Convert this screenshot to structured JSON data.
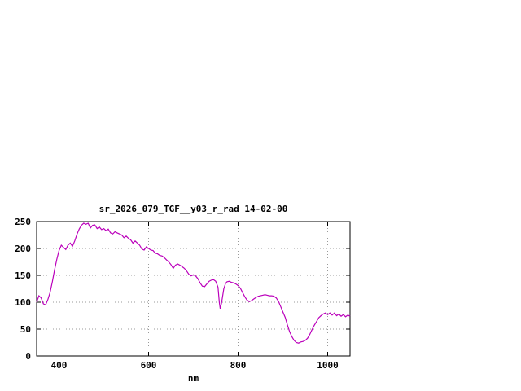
{
  "chart_data": {
    "type": "line",
    "title": "sr_2026_079_TGF__y03_r_rad 14-02-00",
    "xlabel": "nm",
    "ylabel": "",
    "xlim": [
      350,
      1050
    ],
    "ylim": [
      0,
      250
    ],
    "xticks": [
      400,
      600,
      800,
      1000
    ],
    "yticks": [
      0,
      50,
      100,
      150,
      200,
      250
    ],
    "grid": true,
    "legend_position": "none",
    "line_color": "#bb00bb",
    "x": [
      350,
      355,
      360,
      365,
      370,
      375,
      380,
      385,
      390,
      395,
      400,
      405,
      410,
      415,
      420,
      425,
      430,
      435,
      440,
      445,
      450,
      455,
      460,
      465,
      470,
      475,
      480,
      485,
      490,
      495,
      500,
      505,
      510,
      515,
      520,
      525,
      530,
      535,
      540,
      545,
      550,
      555,
      560,
      565,
      570,
      575,
      580,
      585,
      590,
      595,
      600,
      605,
      610,
      615,
      620,
      625,
      630,
      635,
      640,
      645,
      650,
      655,
      660,
      665,
      670,
      675,
      680,
      685,
      690,
      695,
      700,
      705,
      710,
      715,
      720,
      725,
      730,
      735,
      740,
      745,
      750,
      755,
      758,
      760,
      763,
      768,
      772,
      775,
      780,
      785,
      790,
      795,
      800,
      805,
      810,
      815,
      820,
      825,
      830,
      835,
      840,
      845,
      850,
      855,
      860,
      865,
      870,
      875,
      880,
      885,
      890,
      895,
      900,
      905,
      910,
      915,
      920,
      925,
      930,
      935,
      940,
      945,
      950,
      955,
      960,
      965,
      970,
      975,
      980,
      985,
      990,
      995,
      1000,
      1005,
      1010,
      1015,
      1020,
      1025,
      1030,
      1035,
      1040,
      1045,
      1050
    ],
    "values": [
      100,
      112,
      108,
      97,
      95,
      105,
      118,
      138,
      160,
      180,
      196,
      206,
      202,
      198,
      206,
      210,
      204,
      214,
      226,
      236,
      243,
      247,
      245,
      247,
      238,
      243,
      244,
      237,
      240,
      235,
      237,
      233,
      236,
      229,
      227,
      231,
      229,
      227,
      225,
      220,
      223,
      219,
      216,
      210,
      214,
      210,
      206,
      199,
      197,
      203,
      200,
      197,
      196,
      191,
      190,
      187,
      186,
      183,
      179,
      175,
      170,
      163,
      169,
      171,
      169,
      166,
      163,
      158,
      152,
      149,
      151,
      149,
      144,
      136,
      130,
      129,
      134,
      139,
      141,
      142,
      139,
      128,
      100,
      88,
      98,
      125,
      135,
      138,
      139,
      137,
      136,
      134,
      131,
      126,
      118,
      110,
      104,
      101,
      103,
      106,
      109,
      111,
      112,
      113,
      114,
      113,
      112,
      112,
      111,
      108,
      102,
      92,
      82,
      72,
      58,
      45,
      36,
      29,
      25,
      24,
      26,
      27,
      29,
      33,
      40,
      49,
      57,
      64,
      71,
      75,
      78,
      80,
      77,
      80,
      76,
      80,
      75,
      78,
      74,
      77,
      73,
      76,
      74
    ]
  }
}
